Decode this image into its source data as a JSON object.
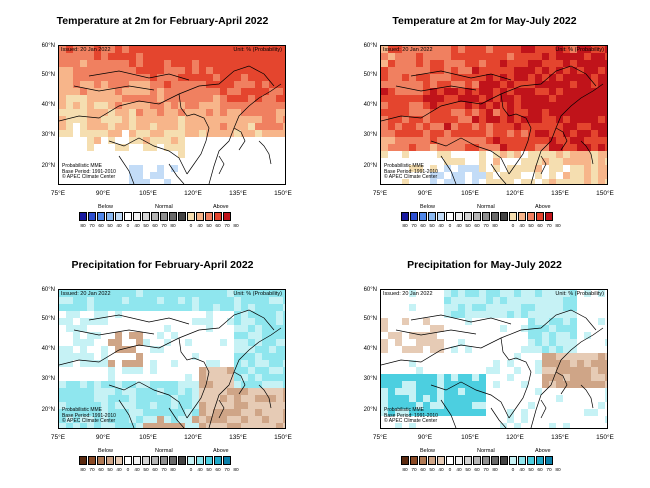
{
  "common": {
    "issued": "Issued: 20 Jan 2022",
    "unit": "Unit: % (Probability)",
    "info_lines": [
      "Probabilistic MME",
      "Base Period: 1991-2010",
      "© APEC Climate Center"
    ],
    "lat_labels": [
      "60°N",
      "50°N",
      "40°N",
      "30°N",
      "20°N"
    ],
    "lon_labels": [
      "75°E",
      "90°E",
      "105°E",
      "120°E",
      "135°E",
      "150°E"
    ],
    "legend_categories": [
      "Below",
      "Normal",
      "Above"
    ],
    "legend_ticks": [
      "80",
      "70",
      "60",
      "50",
      "40",
      "0",
      "40",
      "50",
      "60",
      "70",
      "80",
      "0",
      "40",
      "50",
      "60",
      "70",
      "80"
    ]
  },
  "panels": [
    {
      "title": "Temperature at 2m for February-April 2022",
      "kind": "temperature"
    },
    {
      "title": "Temperature at 2m for May-July 2022",
      "kind": "temperature"
    },
    {
      "title": "Precipitation for February-April 2022",
      "kind": "precipitation"
    },
    {
      "title": "Precipitation for May-July 2022",
      "kind": "precipitation"
    }
  ],
  "colors": {
    "temperature_below": [
      "#1a1aa0",
      "#2d4fd0",
      "#4f86e8",
      "#8ab8f0",
      "#c3dcf7"
    ],
    "temperature_above": [
      "#f5deb0",
      "#f7b58a",
      "#f08060",
      "#e4452e",
      "#c0131a"
    ],
    "precipitation_below": [
      "#5b2a10",
      "#8a4a26",
      "#b07a55",
      "#cfa587",
      "#e6cbb5"
    ],
    "precipitation_above": [
      "#c6f2f5",
      "#8fe6ee",
      "#4ccfe0",
      "#1fa8c8",
      "#0b7fa8"
    ],
    "normal": [
      "#f2f2f2",
      "#d5d5d5",
      "#b5b5b5",
      "#8f8f8f",
      "#6a6a6a",
      "#444444"
    ]
  }
}
